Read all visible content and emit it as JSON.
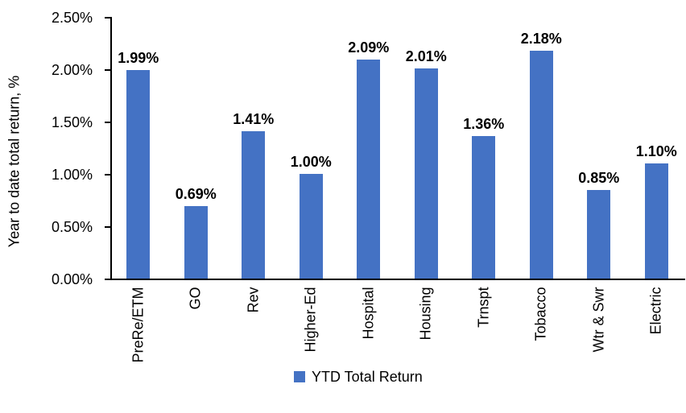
{
  "colors": {
    "bar": "#4472C4",
    "axis": "#000000",
    "text": "#000000",
    "background": "#FFFFFF"
  },
  "chart_data": {
    "type": "bar",
    "title": "",
    "categories": [
      "PreRe/ETM",
      "GO",
      "Rev",
      "Higher-Ed",
      "Hospital",
      "Housing",
      "Trnspt",
      "Tobacco",
      "Wtr & Swr",
      "Electric"
    ],
    "series": [
      {
        "name": "YTD Total Return",
        "values": [
          1.99,
          0.69,
          1.41,
          1.0,
          2.09,
          2.01,
          1.36,
          2.18,
          0.85,
          1.1
        ]
      }
    ],
    "data_labels": [
      "1.99%",
      "0.69%",
      "1.41%",
      "1.00%",
      "2.09%",
      "2.01%",
      "1.36%",
      "2.18%",
      "0.85%",
      "1.10%"
    ],
    "xlabel": "",
    "ylabel": "Year to date total return, %",
    "ylim": [
      0,
      2.5
    ],
    "yticks": [
      0,
      0.5,
      1.0,
      1.5,
      2.0,
      2.5
    ],
    "ytick_labels": [
      "0.00%",
      "0.50%",
      "1.00%",
      "1.50%",
      "2.00%",
      "2.50%"
    ],
    "grid": false,
    "legend": {
      "position": "bottom",
      "entries": [
        "YTD Total Return"
      ]
    },
    "bar_color": "#4472C4"
  }
}
